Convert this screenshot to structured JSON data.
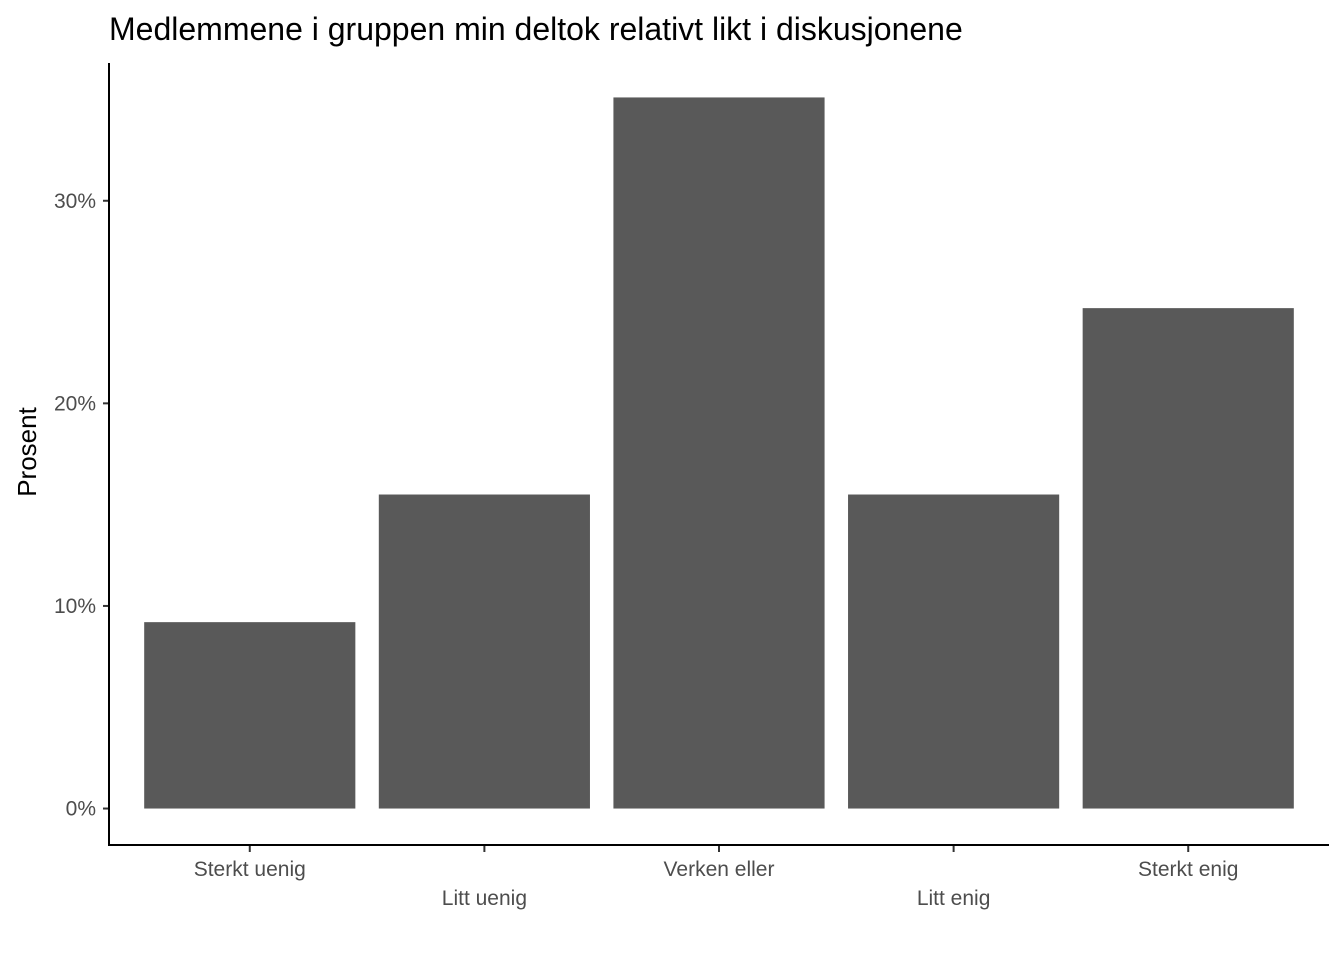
{
  "chart_data": {
    "type": "bar",
    "title": "Medlemmene i gruppen min deltok relativt likt i diskusjonene",
    "xlabel": "",
    "ylabel": "Prosent",
    "categories": [
      "Sterkt uenig",
      "Litt uenig",
      "Verken eller",
      "Litt enig",
      "Sterkt enig"
    ],
    "values": [
      9.2,
      15.5,
      35.1,
      15.5,
      24.7
    ],
    "ylim": [
      -1.8,
      36.8
    ],
    "yticks": [
      0,
      10,
      20,
      30
    ],
    "ytick_labels": [
      "0%",
      "10%",
      "20%",
      "30%"
    ],
    "bar_color": "#595959",
    "grid": false,
    "x_label_stagger": true
  }
}
